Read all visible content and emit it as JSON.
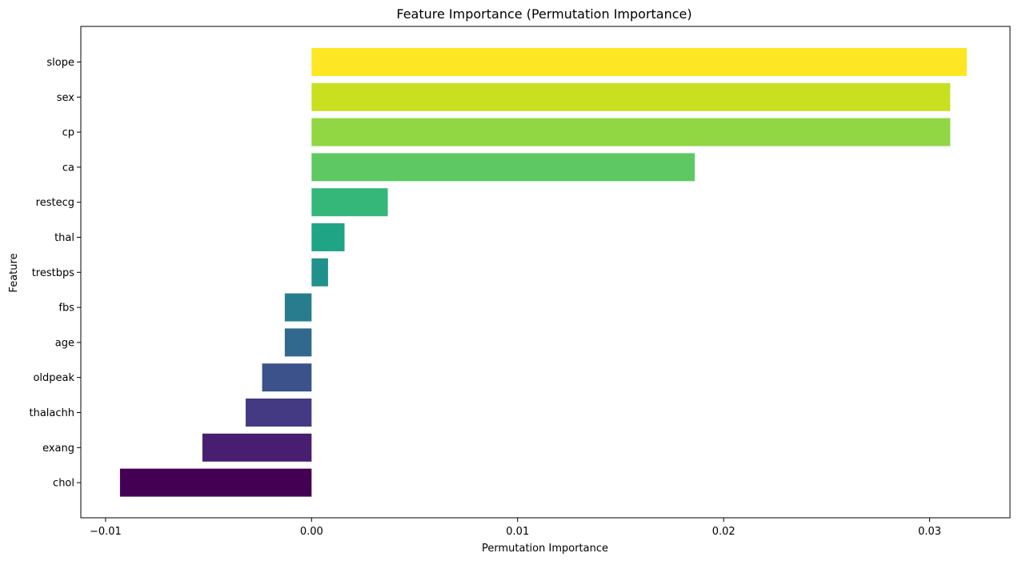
{
  "chart_data": {
    "type": "bar",
    "orientation": "horizontal",
    "title": "Feature Importance (Permutation Importance)",
    "xlabel": "Permutation Importance",
    "ylabel": "Feature",
    "categories": [
      "slope",
      "sex",
      "cp",
      "ca",
      "restecg",
      "thal",
      "trestbps",
      "fbs",
      "age",
      "oldpeak",
      "thalachh",
      "exang",
      "chol"
    ],
    "values": [
      0.0318,
      0.031,
      0.031,
      0.0186,
      0.0037,
      0.0016,
      0.0008,
      -0.0013,
      -0.0013,
      -0.0024,
      -0.0032,
      -0.0053,
      -0.0093
    ],
    "colors": [
      "#fde725",
      "#c8e020",
      "#90d743",
      "#5ec962",
      "#35b779",
      "#20a486",
      "#21918c",
      "#287c8e",
      "#31688e",
      "#3b528b",
      "#443983",
      "#481f70",
      "#440154"
    ],
    "xlim": [
      -0.0112,
      0.0339
    ],
    "xticks": [
      -0.01,
      0.0,
      0.01,
      0.02,
      0.03
    ],
    "xtick_labels": [
      "−0.01",
      "0.00",
      "0.01",
      "0.02",
      "0.03"
    ],
    "grid": false,
    "legend": null
  }
}
